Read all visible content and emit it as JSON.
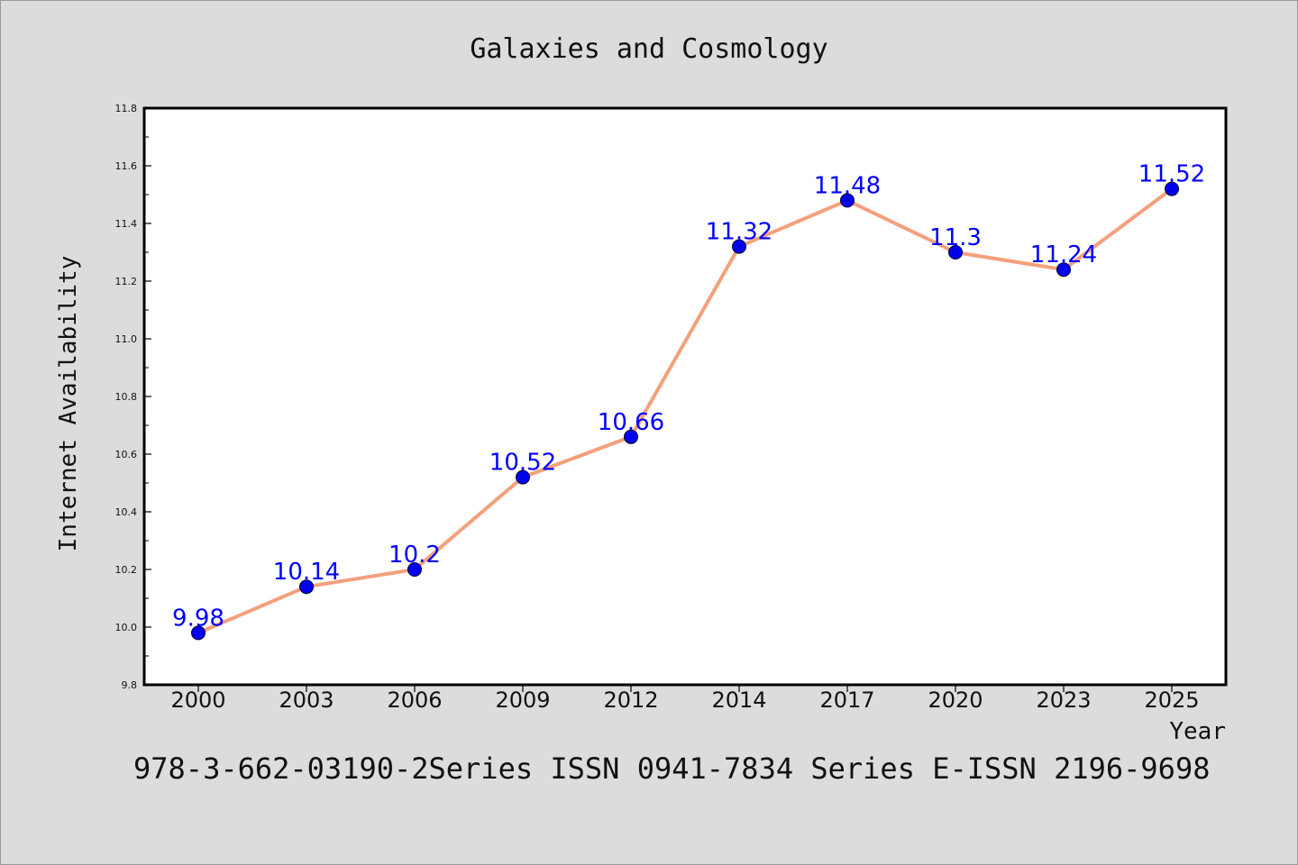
{
  "chart_data": {
    "type": "line",
    "title": "Galaxies and Cosmology",
    "xlabel": "Year",
    "ylabel": "Internet Availability",
    "categories": [
      "2000",
      "2003",
      "2006",
      "2009",
      "2012",
      "2014",
      "2017",
      "2020",
      "2023",
      "2025"
    ],
    "series": [
      {
        "values": [
          9.98,
          10.14,
          10.2,
          10.52,
          10.66,
          11.32,
          11.48,
          11.3,
          11.24,
          11.52
        ],
        "line_color": "#f4a07c",
        "marker_color": "#0000ee",
        "label_color": "#0000ff"
      }
    ],
    "data_labels": [
      "9.98",
      "10.14",
      "10.2",
      "10.52",
      "10.66",
      "11.32",
      "11.48",
      "11.3",
      "11.24",
      "11.52"
    ],
    "ylim": [
      9.8,
      11.8
    ],
    "yticks": [
      "9.8",
      "10.0",
      "10.2",
      "10.4",
      "10.6",
      "10.8",
      "11.0",
      "11.2",
      "11.4",
      "11.6",
      "11.8"
    ],
    "grid": false,
    "legend": "none",
    "background_color": "#dcdcdc",
    "plot_background_color": "#ffffff"
  },
  "footer": {
    "text": "978-3-662-03190-2Series ISSN 0941-7834 Series E-ISSN 2196-9698"
  }
}
